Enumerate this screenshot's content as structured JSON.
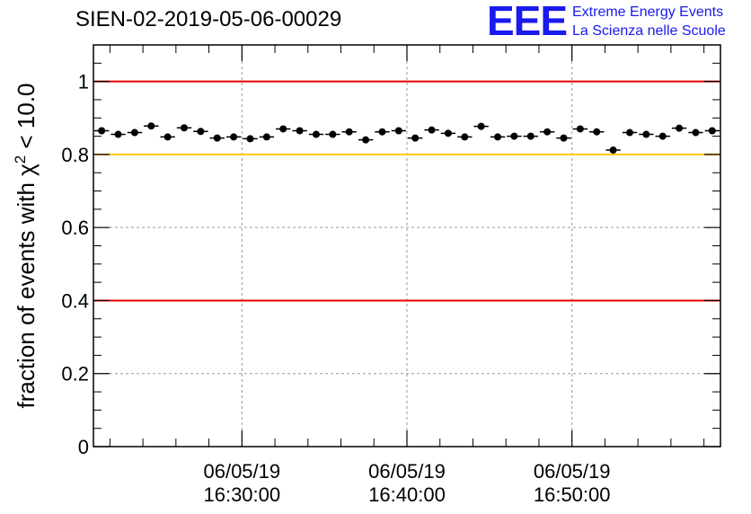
{
  "header": {
    "run_title": "SIEN-02-2019-05-06-00029",
    "logo_mark": "EEE",
    "logo_line1": "Extreme Energy Events",
    "logo_line2": "La Scienza nelle Scuole"
  },
  "colors": {
    "red_line": "#e60000",
    "yellow_line": "#ffc800",
    "logo_blue": "#1a1aee",
    "grid": "#9a9a9a",
    "marker": "#000000"
  },
  "chart_data": {
    "type": "scatter",
    "title": "SIEN-02-2019-05-06-00029",
    "ylabel": "fraction of events with χ² < 10.0",
    "ylabel_main": "fraction of events with χ",
    "ylabel_sup": "2",
    "ylabel_tail": " < 10.0",
    "xlabel": "",
    "xlim": [
      "16:21:00",
      "16:59:00"
    ],
    "ylim": [
      0,
      1.1
    ],
    "grid": true,
    "y_ticks": [
      {
        "value": 0,
        "label": "0"
      },
      {
        "value": 0.2,
        "label": "0.2"
      },
      {
        "value": 0.4,
        "label": "0.4"
      },
      {
        "value": 0.6,
        "label": "0.6"
      },
      {
        "value": 0.8,
        "label": "0.8"
      },
      {
        "value": 1,
        "label": "1"
      }
    ],
    "x_ticks": [
      {
        "time": "16:30:00",
        "date_label": "06/05/19",
        "time_label": "16:30:00"
      },
      {
        "time": "16:40:00",
        "date_label": "06/05/19",
        "time_label": "16:40:00"
      },
      {
        "time": "16:50:00",
        "date_label": "06/05/19",
        "time_label": "16:50:00"
      }
    ],
    "reference_lines": [
      {
        "y": 1.0,
        "color": "red"
      },
      {
        "y": 0.8,
        "color": "yellow"
      },
      {
        "y": 0.4,
        "color": "red"
      }
    ],
    "bin_width_minutes": 1,
    "series": [
      {
        "x": [
          "16:21:30",
          "16:22:30",
          "16:23:30",
          "16:24:30",
          "16:25:30",
          "16:26:30",
          "16:27:30",
          "16:28:30",
          "16:29:30",
          "16:30:30",
          "16:31:30",
          "16:32:30",
          "16:33:30",
          "16:34:30",
          "16:35:30",
          "16:36:30",
          "16:37:30",
          "16:38:30",
          "16:39:30",
          "16:40:30",
          "16:41:30",
          "16:42:30",
          "16:43:30",
          "16:44:30",
          "16:45:30",
          "16:46:30",
          "16:47:30",
          "16:48:30",
          "16:49:30",
          "16:50:30",
          "16:51:30",
          "16:52:30",
          "16:53:30",
          "16:54:30",
          "16:55:30",
          "16:56:30",
          "16:57:30",
          "16:58:30"
        ],
        "y": [
          0.865,
          0.855,
          0.86,
          0.878,
          0.848,
          0.873,
          0.863,
          0.845,
          0.848,
          0.843,
          0.848,
          0.87,
          0.865,
          0.855,
          0.855,
          0.862,
          0.84,
          0.862,
          0.865,
          0.845,
          0.867,
          0.858,
          0.848,
          0.877,
          0.848,
          0.85,
          0.85,
          0.862,
          0.845,
          0.87,
          0.862,
          0.812,
          0.86,
          0.855,
          0.85,
          0.872,
          0.86,
          0.865
        ]
      }
    ]
  }
}
